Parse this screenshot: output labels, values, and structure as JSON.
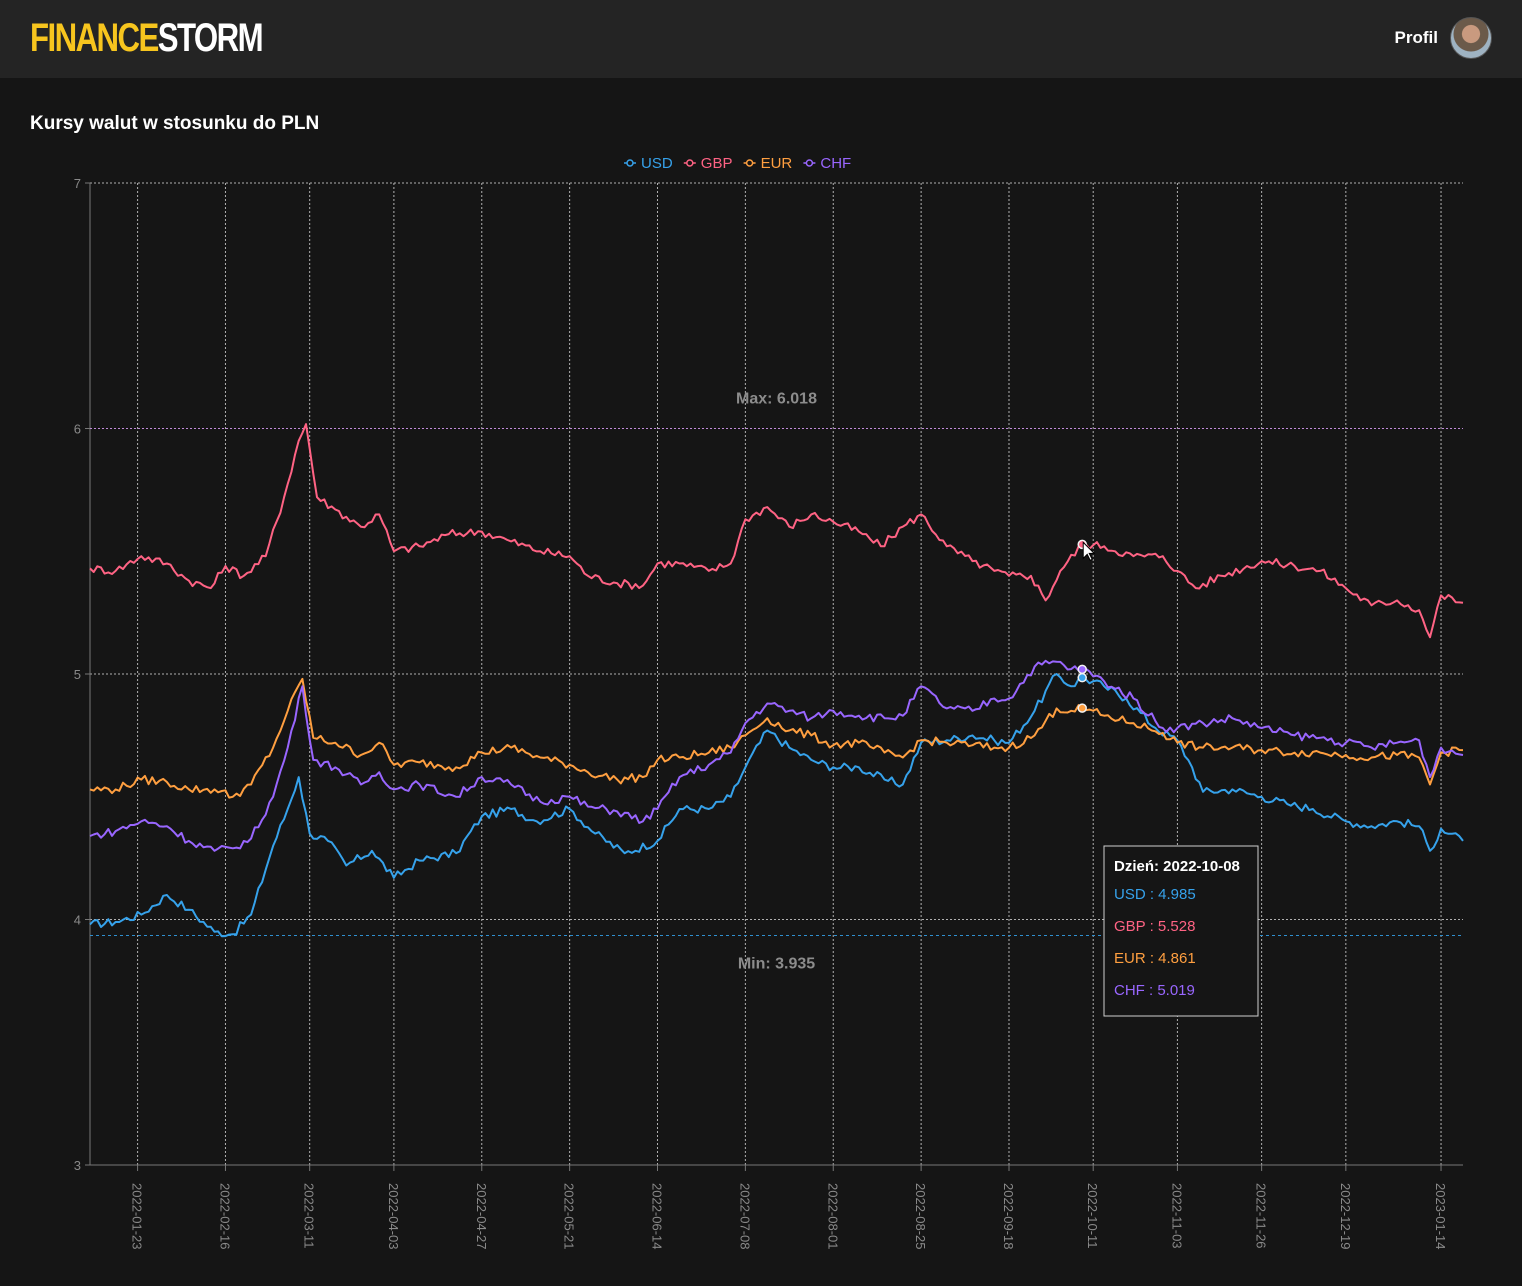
{
  "header": {
    "logo_part1": "FINANCE",
    "logo_part2": "STORM",
    "profile_label": "Profil"
  },
  "page": {
    "title": "Kursy walut w stosunku do PLN"
  },
  "colors": {
    "USD": "#36a2eb",
    "GBP": "#ff6384",
    "EUR": "#ff9f40",
    "CHF": "#9966ff",
    "grid": "#cccccc",
    "max_line": "#c08bd8",
    "min_line": "#2f8fcf"
  },
  "chart_data": {
    "type": "line",
    "title": "",
    "xlabel": "",
    "ylabel": "",
    "ylim": [
      3,
      7
    ],
    "yticks": [
      "3",
      "4",
      "5",
      "6",
      "7"
    ],
    "x_range": [
      "2022-01-10",
      "2023-01-20"
    ],
    "x_ticks": [
      "2022-01-23",
      "2022-02-16",
      "2022-03-11",
      "2022-04-03",
      "2022-04-27",
      "2022-05-21",
      "2022-06-14",
      "2022-07-08",
      "2022-08-01",
      "2022-08-25",
      "2022-09-18",
      "2022-10-11",
      "2022-11-03",
      "2022-11-26",
      "2022-12-19",
      "2023-01-14"
    ],
    "grid": true,
    "legend_position": "top",
    "series": [
      {
        "name": "USD",
        "points": [
          [
            "2022-01-10",
            3.98
          ],
          [
            "2022-01-17",
            3.99
          ],
          [
            "2022-01-24",
            4.02
          ],
          [
            "2022-01-31",
            4.1
          ],
          [
            "2022-02-06",
            4.04
          ],
          [
            "2022-02-13",
            3.95
          ],
          [
            "2022-02-18",
            3.94
          ],
          [
            "2022-02-23",
            4.02
          ],
          [
            "2022-03-01",
            4.3
          ],
          [
            "2022-03-05",
            4.45
          ],
          [
            "2022-03-08",
            4.58
          ],
          [
            "2022-03-11",
            4.35
          ],
          [
            "2022-03-16",
            4.32
          ],
          [
            "2022-03-21",
            4.22
          ],
          [
            "2022-03-28",
            4.28
          ],
          [
            "2022-04-03",
            4.17
          ],
          [
            "2022-04-10",
            4.24
          ],
          [
            "2022-04-20",
            4.27
          ],
          [
            "2022-04-27",
            4.42
          ],
          [
            "2022-05-05",
            4.45
          ],
          [
            "2022-05-12",
            4.4
          ],
          [
            "2022-05-21",
            4.45
          ],
          [
            "2022-05-28",
            4.35
          ],
          [
            "2022-06-05",
            4.27
          ],
          [
            "2022-06-14",
            4.32
          ],
          [
            "2022-06-20",
            4.45
          ],
          [
            "2022-06-28",
            4.45
          ],
          [
            "2022-07-04",
            4.5
          ],
          [
            "2022-07-08",
            4.62
          ],
          [
            "2022-07-14",
            4.77
          ],
          [
            "2022-07-20",
            4.7
          ],
          [
            "2022-07-26",
            4.65
          ],
          [
            "2022-08-01",
            4.62
          ],
          [
            "2022-08-08",
            4.62
          ],
          [
            "2022-08-15",
            4.57
          ],
          [
            "2022-08-20",
            4.55
          ],
          [
            "2022-08-25",
            4.72
          ],
          [
            "2022-09-01",
            4.73
          ],
          [
            "2022-09-08",
            4.75
          ],
          [
            "2022-09-14",
            4.73
          ],
          [
            "2022-09-18",
            4.72
          ],
          [
            "2022-09-25",
            4.85
          ],
          [
            "2022-10-01",
            5.0
          ],
          [
            "2022-10-05",
            4.95
          ],
          [
            "2022-10-08",
            4.985
          ],
          [
            "2022-10-14",
            4.95
          ],
          [
            "2022-10-20",
            4.9
          ],
          [
            "2022-10-28",
            4.78
          ],
          [
            "2022-11-03",
            4.73
          ],
          [
            "2022-11-07",
            4.62
          ],
          [
            "2022-11-10",
            4.52
          ],
          [
            "2022-11-18",
            4.53
          ],
          [
            "2022-11-26",
            4.5
          ],
          [
            "2022-12-03",
            4.47
          ],
          [
            "2022-12-10",
            4.45
          ],
          [
            "2022-12-19",
            4.4
          ],
          [
            "2022-12-26",
            4.38
          ],
          [
            "2023-01-02",
            4.4
          ],
          [
            "2023-01-08",
            4.38
          ],
          [
            "2023-01-11",
            4.28
          ],
          [
            "2023-01-14",
            4.37
          ],
          [
            "2023-01-20",
            4.32
          ]
        ]
      },
      {
        "name": "GBP",
        "points": [
          [
            "2022-01-10",
            5.43
          ],
          [
            "2022-01-17",
            5.42
          ],
          [
            "2022-01-24",
            5.48
          ],
          [
            "2022-01-31",
            5.45
          ],
          [
            "2022-02-06",
            5.38
          ],
          [
            "2022-02-12",
            5.35
          ],
          [
            "2022-02-16",
            5.44
          ],
          [
            "2022-02-21",
            5.4
          ],
          [
            "2022-02-27",
            5.48
          ],
          [
            "2022-03-04",
            5.72
          ],
          [
            "2022-03-08",
            5.95
          ],
          [
            "2022-03-10",
            6.018
          ],
          [
            "2022-03-13",
            5.72
          ],
          [
            "2022-03-18",
            5.67
          ],
          [
            "2022-03-25",
            5.6
          ],
          [
            "2022-03-30",
            5.65
          ],
          [
            "2022-04-03",
            5.5
          ],
          [
            "2022-04-10",
            5.52
          ],
          [
            "2022-04-18",
            5.57
          ],
          [
            "2022-04-27",
            5.58
          ],
          [
            "2022-05-05",
            5.54
          ],
          [
            "2022-05-13",
            5.5
          ],
          [
            "2022-05-21",
            5.48
          ],
          [
            "2022-05-26",
            5.4
          ],
          [
            "2022-06-03",
            5.37
          ],
          [
            "2022-06-10",
            5.36
          ],
          [
            "2022-06-14",
            5.45
          ],
          [
            "2022-06-20",
            5.45
          ],
          [
            "2022-06-28",
            5.42
          ],
          [
            "2022-07-04",
            5.45
          ],
          [
            "2022-07-08",
            5.63
          ],
          [
            "2022-07-14",
            5.68
          ],
          [
            "2022-07-20",
            5.6
          ],
          [
            "2022-07-26",
            5.65
          ],
          [
            "2022-08-01",
            5.62
          ],
          [
            "2022-08-08",
            5.58
          ],
          [
            "2022-08-14",
            5.52
          ],
          [
            "2022-08-20",
            5.6
          ],
          [
            "2022-08-25",
            5.65
          ],
          [
            "2022-09-01",
            5.52
          ],
          [
            "2022-09-08",
            5.46
          ],
          [
            "2022-09-14",
            5.42
          ],
          [
            "2022-09-18",
            5.4
          ],
          [
            "2022-09-24",
            5.4
          ],
          [
            "2022-09-28",
            5.3
          ],
          [
            "2022-10-02",
            5.42
          ],
          [
            "2022-10-08",
            5.528
          ],
          [
            "2022-10-14",
            5.52
          ],
          [
            "2022-10-22",
            5.48
          ],
          [
            "2022-10-30",
            5.48
          ],
          [
            "2022-11-03",
            5.42
          ],
          [
            "2022-11-08",
            5.35
          ],
          [
            "2022-11-15",
            5.4
          ],
          [
            "2022-11-26",
            5.46
          ],
          [
            "2022-12-05",
            5.44
          ],
          [
            "2022-12-12",
            5.42
          ],
          [
            "2022-12-19",
            5.35
          ],
          [
            "2022-12-26",
            5.28
          ],
          [
            "2023-01-02",
            5.3
          ],
          [
            "2023-01-08",
            5.26
          ],
          [
            "2023-01-11",
            5.15
          ],
          [
            "2023-01-14",
            5.32
          ],
          [
            "2023-01-20",
            5.29
          ]
        ]
      },
      {
        "name": "EUR",
        "points": [
          [
            "2022-01-10",
            4.53
          ],
          [
            "2022-01-17",
            4.53
          ],
          [
            "2022-01-24",
            4.57
          ],
          [
            "2022-01-31",
            4.56
          ],
          [
            "2022-02-06",
            4.53
          ],
          [
            "2022-02-13",
            4.53
          ],
          [
            "2022-02-18",
            4.5
          ],
          [
            "2022-02-23",
            4.55
          ],
          [
            "2022-03-01",
            4.7
          ],
          [
            "2022-03-05",
            4.85
          ],
          [
            "2022-03-09",
            4.98
          ],
          [
            "2022-03-12",
            4.74
          ],
          [
            "2022-03-18",
            4.72
          ],
          [
            "2022-03-25",
            4.67
          ],
          [
            "2022-03-30",
            4.72
          ],
          [
            "2022-04-03",
            4.63
          ],
          [
            "2022-04-10",
            4.64
          ],
          [
            "2022-04-20",
            4.62
          ],
          [
            "2022-04-27",
            4.68
          ],
          [
            "2022-05-05",
            4.7
          ],
          [
            "2022-05-13",
            4.66
          ],
          [
            "2022-05-21",
            4.63
          ],
          [
            "2022-05-26",
            4.6
          ],
          [
            "2022-06-03",
            4.57
          ],
          [
            "2022-06-10",
            4.58
          ],
          [
            "2022-06-14",
            4.65
          ],
          [
            "2022-06-20",
            4.66
          ],
          [
            "2022-06-28",
            4.68
          ],
          [
            "2022-07-04",
            4.7
          ],
          [
            "2022-07-08",
            4.75
          ],
          [
            "2022-07-14",
            4.82
          ],
          [
            "2022-07-20",
            4.77
          ],
          [
            "2022-07-26",
            4.75
          ],
          [
            "2022-08-01",
            4.71
          ],
          [
            "2022-08-08",
            4.72
          ],
          [
            "2022-08-15",
            4.68
          ],
          [
            "2022-08-20",
            4.66
          ],
          [
            "2022-08-25",
            4.73
          ],
          [
            "2022-09-01",
            4.72
          ],
          [
            "2022-09-08",
            4.71
          ],
          [
            "2022-09-14",
            4.7
          ],
          [
            "2022-09-18",
            4.7
          ],
          [
            "2022-09-25",
            4.75
          ],
          [
            "2022-10-01",
            4.86
          ],
          [
            "2022-10-05",
            4.85
          ],
          [
            "2022-10-08",
            4.861
          ],
          [
            "2022-10-14",
            4.83
          ],
          [
            "2022-10-22",
            4.8
          ],
          [
            "2022-10-30",
            4.76
          ],
          [
            "2022-11-03",
            4.72
          ],
          [
            "2022-11-10",
            4.7
          ],
          [
            "2022-11-18",
            4.7
          ],
          [
            "2022-11-26",
            4.69
          ],
          [
            "2022-12-05",
            4.68
          ],
          [
            "2022-12-12",
            4.68
          ],
          [
            "2022-12-19",
            4.67
          ],
          [
            "2022-12-26",
            4.66
          ],
          [
            "2023-01-02",
            4.67
          ],
          [
            "2023-01-08",
            4.66
          ],
          [
            "2023-01-11",
            4.55
          ],
          [
            "2023-01-14",
            4.68
          ],
          [
            "2023-01-20",
            4.69
          ]
        ]
      },
      {
        "name": "CHF",
        "points": [
          [
            "2022-01-10",
            4.34
          ],
          [
            "2022-01-17",
            4.36
          ],
          [
            "2022-01-24",
            4.4
          ],
          [
            "2022-01-31",
            4.38
          ],
          [
            "2022-02-06",
            4.32
          ],
          [
            "2022-02-13",
            4.28
          ],
          [
            "2022-02-18",
            4.29
          ],
          [
            "2022-02-23",
            4.33
          ],
          [
            "2022-03-01",
            4.5
          ],
          [
            "2022-03-05",
            4.7
          ],
          [
            "2022-03-09",
            4.95
          ],
          [
            "2022-03-12",
            4.65
          ],
          [
            "2022-03-18",
            4.62
          ],
          [
            "2022-03-25",
            4.55
          ],
          [
            "2022-03-30",
            4.6
          ],
          [
            "2022-04-03",
            4.53
          ],
          [
            "2022-04-10",
            4.55
          ],
          [
            "2022-04-20",
            4.5
          ],
          [
            "2022-04-27",
            4.58
          ],
          [
            "2022-05-05",
            4.55
          ],
          [
            "2022-05-13",
            4.48
          ],
          [
            "2022-05-21",
            4.5
          ],
          [
            "2022-05-26",
            4.46
          ],
          [
            "2022-06-03",
            4.44
          ],
          [
            "2022-06-10",
            4.4
          ],
          [
            "2022-06-14",
            4.45
          ],
          [
            "2022-06-20",
            4.58
          ],
          [
            "2022-06-28",
            4.63
          ],
          [
            "2022-07-04",
            4.68
          ],
          [
            "2022-07-08",
            4.8
          ],
          [
            "2022-07-14",
            4.88
          ],
          [
            "2022-07-20",
            4.85
          ],
          [
            "2022-07-26",
            4.82
          ],
          [
            "2022-08-01",
            4.85
          ],
          [
            "2022-08-08",
            4.83
          ],
          [
            "2022-08-15",
            4.82
          ],
          [
            "2022-08-20",
            4.83
          ],
          [
            "2022-08-25",
            4.95
          ],
          [
            "2022-09-01",
            4.86
          ],
          [
            "2022-09-08",
            4.85
          ],
          [
            "2022-09-14",
            4.9
          ],
          [
            "2022-09-18",
            4.9
          ],
          [
            "2022-09-25",
            5.03
          ],
          [
            "2022-10-01",
            5.05
          ],
          [
            "2022-10-05",
            5.02
          ],
          [
            "2022-10-08",
            5.019
          ],
          [
            "2022-10-14",
            4.97
          ],
          [
            "2022-10-22",
            4.9
          ],
          [
            "2022-10-30",
            4.78
          ],
          [
            "2022-11-03",
            4.78
          ],
          [
            "2022-11-10",
            4.8
          ],
          [
            "2022-11-18",
            4.82
          ],
          [
            "2022-11-26",
            4.78
          ],
          [
            "2022-12-05",
            4.75
          ],
          [
            "2022-12-12",
            4.74
          ],
          [
            "2022-12-19",
            4.72
          ],
          [
            "2022-12-26",
            4.7
          ],
          [
            "2023-01-02",
            4.72
          ],
          [
            "2023-01-08",
            4.73
          ],
          [
            "2023-01-11",
            4.58
          ],
          [
            "2023-01-14",
            4.7
          ],
          [
            "2023-01-20",
            4.67
          ]
        ]
      }
    ],
    "annotations": {
      "max": {
        "label": "Max: 6.018",
        "value": 6.018
      },
      "min": {
        "label": "Min: 3.935",
        "value": 3.935
      }
    },
    "tooltip": {
      "date": "2022-10-08",
      "title": "Dzień: 2022-10-08",
      "rows": [
        {
          "series": "USD",
          "text": "USD : 4.985",
          "value": 4.985
        },
        {
          "series": "GBP",
          "text": "GBP : 5.528",
          "value": 5.528
        },
        {
          "series": "EUR",
          "text": "EUR : 4.861",
          "value": 4.861
        },
        {
          "series": "CHF",
          "text": "CHF : 5.019",
          "value": 5.019
        }
      ]
    }
  }
}
